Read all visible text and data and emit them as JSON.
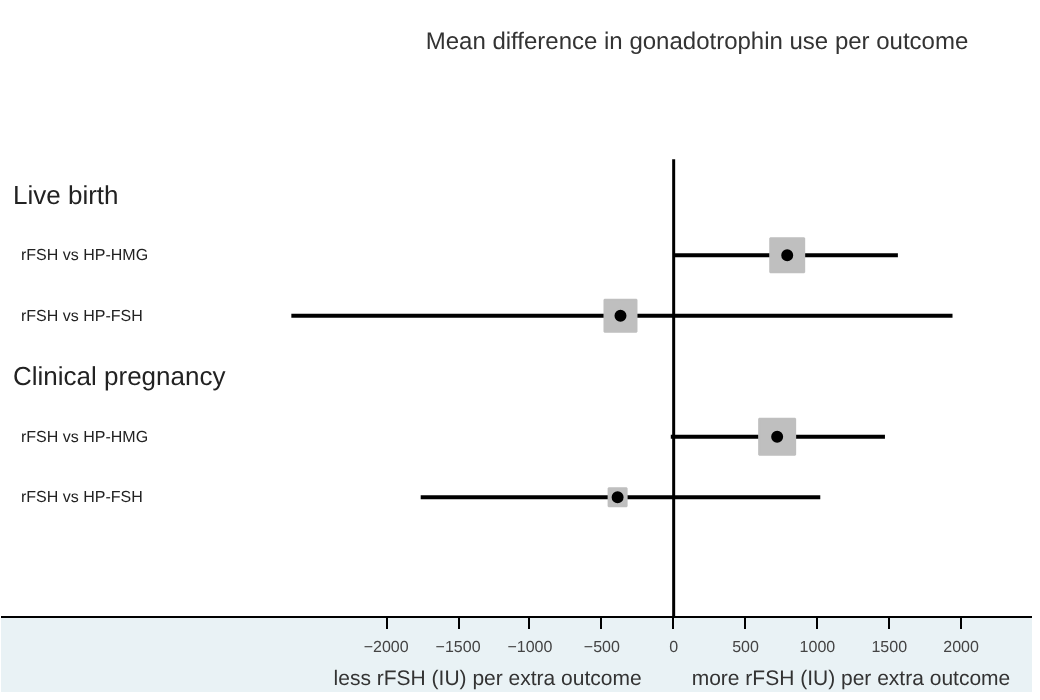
{
  "chart_data": {
    "type": "bubble",
    "title": "Mean difference in gonadotrophin use per outcome",
    "categories": [
      "Live birth",
      "rFSH vs HP-HMG",
      "rFSH vs HP-FSH",
      "Clinical pregnancy",
      "rFSH vs HP-HMG",
      "rFSH vs HP-FSH"
    ],
    "values": [
      null,
      790,
      -370,
      null,
      720,
      -390
    ],
    "errors": [
      null,
      [
        0,
        1560
      ],
      [
        -2660,
        1940
      ],
      null,
      [
        -20,
        1470
      ],
      [
        -1760,
        1020
      ]
    ],
    "sizes": [
      null,
      0.89,
      0.79,
      null,
      1,
      0.25
    ],
    "color": "#bfbfbf",
    "marker": "square",
    "orientation": "horizontal",
    "xlim": [
      -4680,
      2500
    ],
    "xticks": [
      -2000,
      -1500,
      -1000,
      -500,
      0,
      500,
      1000,
      1500,
      2000
    ],
    "ref_lines": [
      {
        "axis": "x",
        "value": 0,
        "color": "#000000"
      }
    ],
    "annotations": [
      "less rFSH (IU) per extra outcome",
      "more rFSH (IU) per extra outcome"
    ],
    "grid": false,
    "tick_labels": "x"
  }
}
